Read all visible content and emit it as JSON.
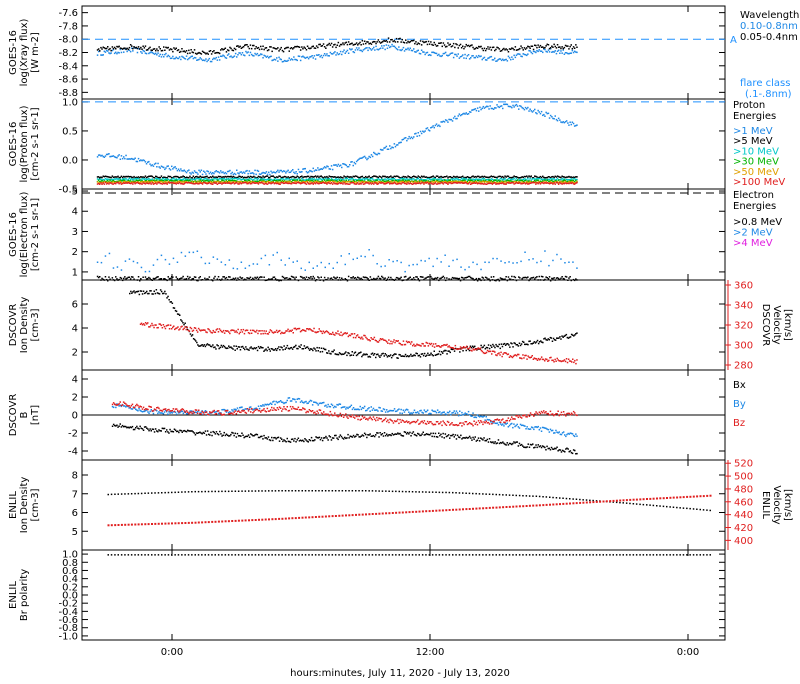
{
  "chart_data": {
    "type": "multi-panel-timeseries",
    "time_range": {
      "start": "2020-07-11 21:00",
      "end": "2020-07-13 01:00",
      "unit": "hours"
    },
    "x_ticks": [
      {
        "label": "0:00",
        "hour": 3
      },
      {
        "label": "12:00",
        "hour": 15
      },
      {
        "label": "0:00",
        "hour": 27
      }
    ],
    "xlabel": "hours:minutes, July 11, 2020 - July 13, 2020",
    "panels": [
      {
        "id": "xray",
        "ylabel_lines": [
          "GOES-16",
          "log(Xray flux)",
          "[W m-2]"
        ],
        "ylim": [
          -8.9,
          -7.5
        ],
        "ticks": [
          -7.6,
          -7.8,
          -8.0,
          -8.2,
          -8.4,
          -8.6,
          -8.8
        ],
        "tick_labels": [
          "-7.6",
          "-7.8",
          "-8.0",
          "-8.2",
          "-8.4",
          "-8.6",
          "-8.8"
        ],
        "reference_line": {
          "value": -8.0,
          "label": "A",
          "color": "#1e90ff"
        },
        "legend_title": "Wavelength",
        "legend_note": [
          "flare class",
          "(.1-.8nm)"
        ],
        "series": [
          {
            "name": "0.10-0.8nm",
            "color": "#1e88e5",
            "values": [
              -8.2,
              -8.15,
              -8.25,
              -8.3,
              -8.2,
              -8.3,
              -8.25,
              -8.15,
              -8.1,
              -8.2,
              -8.25,
              -8.3,
              -8.15,
              -8.2
            ]
          },
          {
            "name": "0.05-0.4nm",
            "color": "#000000",
            "values": [
              -8.15,
              -8.1,
              -8.15,
              -8.2,
              -8.1,
              -8.15,
              -8.1,
              -8.05,
              -8.0,
              -8.05,
              -8.1,
              -8.15,
              -8.1,
              -8.1
            ]
          }
        ]
      },
      {
        "id": "proton",
        "ylabel_lines": [
          "GOES-16",
          "log(Proton flux)",
          "[cm-2 s-1 sr-1]"
        ],
        "ylim": [
          -0.5,
          1.05
        ],
        "ticks": [
          1.0,
          0.5,
          0.0,
          -0.5
        ],
        "tick_labels": [
          "1.0",
          "0.5",
          "0.0",
          "-0.5"
        ],
        "reference_line": {
          "value": 1.0,
          "color": "#1e90ff"
        },
        "legend_title": "Proton Energies",
        "series": [
          {
            "name": ">1 MeV",
            "color": "#1e88e5",
            "values": [
              0.1,
              0.05,
              -0.1,
              -0.2,
              -0.2,
              -0.2,
              -0.2,
              -0.15,
              -0.05,
              0.2,
              0.45,
              0.7,
              0.9,
              0.95,
              0.8,
              0.6
            ]
          },
          {
            "name": ">5 MeV",
            "color": "#000000",
            "values": [
              -0.28,
              -0.28,
              -0.28,
              -0.28,
              -0.28,
              -0.28,
              -0.28,
              -0.28,
              -0.28,
              -0.28,
              -0.28,
              -0.28,
              -0.28,
              -0.28,
              -0.28,
              -0.28
            ]
          },
          {
            "name": ">10 MeV",
            "color": "#00c8c8",
            "values": [
              -0.32,
              -0.32,
              -0.32,
              -0.32,
              -0.32,
              -0.32,
              -0.32,
              -0.32,
              -0.32,
              -0.32,
              -0.32,
              -0.32,
              -0.32,
              -0.32,
              -0.32,
              -0.32
            ]
          },
          {
            "name": ">30 MeV",
            "color": "#00b400",
            "values": [
              -0.35,
              -0.35,
              -0.35,
              -0.35,
              -0.35,
              -0.35,
              -0.35,
              -0.35,
              -0.35,
              -0.35,
              -0.35,
              -0.35,
              -0.35,
              -0.35,
              -0.35,
              -0.35
            ]
          },
          {
            "name": ">50 MeV",
            "color": "#e0a000",
            "values": [
              -0.37,
              -0.37,
              -0.37,
              -0.37,
              -0.37,
              -0.37,
              -0.37,
              -0.37,
              -0.37,
              -0.37,
              -0.37,
              -0.37,
              -0.37,
              -0.37,
              -0.37,
              -0.37
            ]
          },
          {
            "name": ">100 MeV",
            "color": "#e02020",
            "values": [
              -0.39,
              -0.39,
              -0.39,
              -0.39,
              -0.39,
              -0.39,
              -0.39,
              -0.39,
              -0.39,
              -0.39,
              -0.39,
              -0.39,
              -0.39,
              -0.39,
              -0.39,
              -0.39
            ]
          }
        ]
      },
      {
        "id": "electron",
        "ylabel_lines": [
          "GOES-16",
          "log(Electron flux)",
          "[cm-2 s-1 sr-1]"
        ],
        "ylim": [
          0.6,
          5.1
        ],
        "ticks": [
          1,
          2,
          3,
          4,
          5
        ],
        "tick_labels": [
          "1",
          "2",
          "3",
          "4",
          "5"
        ],
        "reference_line": {
          "value": 4.9,
          "color": "#000000"
        },
        "legend_title": "Electron Energies",
        "series": [
          {
            "name": ">0.8 MeV",
            "color": "#000000",
            "values": [
              0.7,
              0.7,
              0.7,
              0.7,
              0.7,
              0.7,
              0.7,
              0.7,
              0.7,
              0.7,
              0.7,
              0.7
            ]
          },
          {
            "name": ">2 MeV",
            "color": "#1e88e5",
            "values": [
              1.8,
              1.2,
              2.0,
              1.5,
              1.7,
              1.2,
              1.9,
              1.4,
              1.6,
              1.3,
              1.8,
              1.5
            ]
          },
          {
            "name": ">4 MeV",
            "color": "#e020e0",
            "values": []
          }
        ]
      },
      {
        "id": "dscovr_density",
        "ylabel_lines": [
          "DSCOVR",
          "Ion Density",
          "[cm-3]"
        ],
        "ylim": [
          0.5,
          8
        ],
        "ticks": [
          2,
          4,
          6
        ],
        "tick_labels": [
          "2",
          "4",
          "6"
        ],
        "right_ylabel_lines": [
          "DSCOVR",
          "Velocity",
          "[km/s]"
        ],
        "right_ylim": [
          275,
          365
        ],
        "right_ticks": [
          280,
          300,
          320,
          340,
          360
        ],
        "right_tick_labels": [
          "280",
          "300",
          "320",
          "340",
          "360"
        ],
        "series": [
          {
            "name": "Ion Density",
            "color": "#000000",
            "values": [
              7.0,
              7.1,
              2.6,
              2.4,
              2.3,
              2.5,
              2.0,
              1.8,
              1.7,
              2.0,
              2.4,
              2.6,
              3.0,
              3.5
            ]
          },
          {
            "name": "Velocity",
            "color": "#e02020",
            "axis": "right",
            "values": [
              322,
              318,
              315,
              314,
              314,
              316,
              312,
              306,
              302,
              300,
              296,
              290,
              287,
              284
            ]
          }
        ]
      },
      {
        "id": "dscovr_b",
        "ylabel_lines": [
          "DSCOVR",
          "B",
          "[nT]"
        ],
        "ylim": [
          -5,
          5
        ],
        "ticks": [
          4,
          2,
          0,
          -2,
          -4
        ],
        "tick_labels": [
          "4",
          "2",
          "0",
          "-2",
          "-4"
        ],
        "zero_line": true,
        "series": [
          {
            "name": "Bx",
            "color": "#000000",
            "values": [
              -1.0,
              -1.5,
              -1.8,
              -2.0,
              -2.3,
              -2.8,
              -2.5,
              -2.2,
              -2.0,
              -2.1,
              -2.5,
              -3.0,
              -3.5,
              -4.0
            ]
          },
          {
            "name": "By",
            "color": "#1e88e5",
            "values": [
              1.2,
              0.5,
              0.3,
              0.4,
              0.9,
              1.8,
              1.2,
              0.8,
              0.5,
              0.4,
              0.2,
              -1.0,
              -1.5,
              -2.3
            ]
          },
          {
            "name": "Bz",
            "color": "#e02020",
            "values": [
              1.5,
              0.8,
              0.5,
              0.3,
              0.6,
              0.8,
              0.3,
              -0.3,
              -0.6,
              -0.8,
              -0.9,
              -0.5,
              0.3,
              0.2
            ]
          }
        ]
      },
      {
        "id": "enlil_density",
        "ylabel_lines": [
          "ENLIL",
          "Ion Density",
          "[cm-3]"
        ],
        "ylim": [
          4,
          8.8
        ],
        "ticks": [
          5,
          6,
          7,
          8
        ],
        "tick_labels": [
          "5",
          "6",
          "7",
          "8"
        ],
        "right_ylabel_lines": [
          "ENLIL",
          "Velocity",
          "[km/s]"
        ],
        "right_ylim": [
          385,
          525
        ],
        "right_ticks": [
          400,
          420,
          440,
          460,
          480,
          500,
          520
        ],
        "right_tick_labels": [
          "400",
          "420",
          "440",
          "460",
          "480",
          "500",
          "520"
        ],
        "series": [
          {
            "name": "Ion Density",
            "color": "#000000",
            "x_hours": [
              0,
              4,
              8,
              12,
              16,
              20,
              24,
              28
            ],
            "values": [
              7.0,
              7.15,
              7.2,
              7.2,
              7.1,
              6.9,
              6.55,
              6.15
            ]
          },
          {
            "name": "Velocity",
            "color": "#e02020",
            "axis": "right",
            "x_hours": [
              0,
              4,
              8,
              12,
              16,
              20,
              24,
              28
            ],
            "values": [
              425,
              429,
              435,
              442,
              449,
              456,
              464,
              471
            ]
          }
        ]
      },
      {
        "id": "enlil_polarity",
        "ylabel_lines": [
          "ENLIL",
          "Br polarity"
        ],
        "ylim": [
          -1.1,
          1.1
        ],
        "ticks": [
          1.0,
          0.8,
          0.6,
          0.4,
          0.2,
          0.0,
          -0.2,
          -0.4,
          -0.6,
          -0.8,
          -1.0
        ],
        "tick_labels": [
          "1.0",
          "0.8",
          "0.6",
          "0.4",
          "0.2",
          "0.0",
          "-0.2",
          "-0.4",
          "-0.6",
          "-0.8",
          "-1.0"
        ],
        "series": [
          {
            "name": "Br polarity",
            "color": "#000000",
            "x_hours": [
              0,
              28
            ],
            "values": [
              1.0,
              1.0
            ]
          }
        ]
      }
    ]
  }
}
